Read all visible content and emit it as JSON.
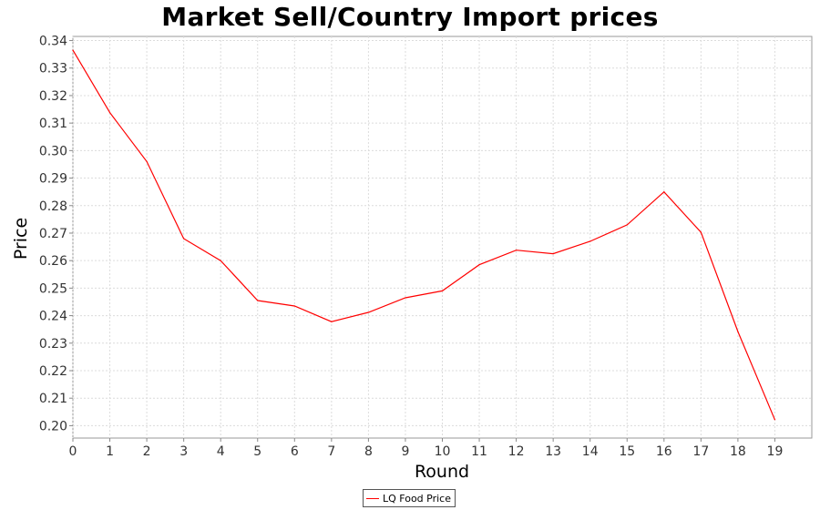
{
  "chart_data": {
    "type": "line",
    "title": "Market Sell/Country Import prices",
    "xlabel": "Round",
    "ylabel": "Price",
    "xlim": [
      0,
      20
    ],
    "ylim": [
      0.1955,
      0.3415
    ],
    "grid": true,
    "legend_position": "bottom-center",
    "x_ticks": [
      0,
      1,
      2,
      3,
      4,
      5,
      6,
      7,
      8,
      9,
      10,
      11,
      12,
      13,
      14,
      15,
      16,
      17,
      18,
      19
    ],
    "y_ticks": [
      "0.20",
      "0.21",
      "0.22",
      "0.23",
      "0.24",
      "0.25",
      "0.26",
      "0.27",
      "0.28",
      "0.29",
      "0.30",
      "0.31",
      "0.32",
      "0.33",
      "0.34"
    ],
    "series": [
      {
        "name": "LQ Food Price",
        "color": "#ff0000",
        "x": [
          0,
          1,
          2,
          3,
          4,
          5,
          6,
          7,
          8,
          9,
          10,
          11,
          12,
          13,
          14,
          15,
          16,
          17,
          18,
          19
        ],
        "values": [
          0.3365,
          0.3138,
          0.296,
          0.268,
          0.26,
          0.2455,
          0.2435,
          0.2378,
          0.2412,
          0.2465,
          0.249,
          0.2585,
          0.2638,
          0.2625,
          0.267,
          0.273,
          0.285,
          0.2703,
          0.2342,
          0.2022
        ]
      }
    ]
  }
}
